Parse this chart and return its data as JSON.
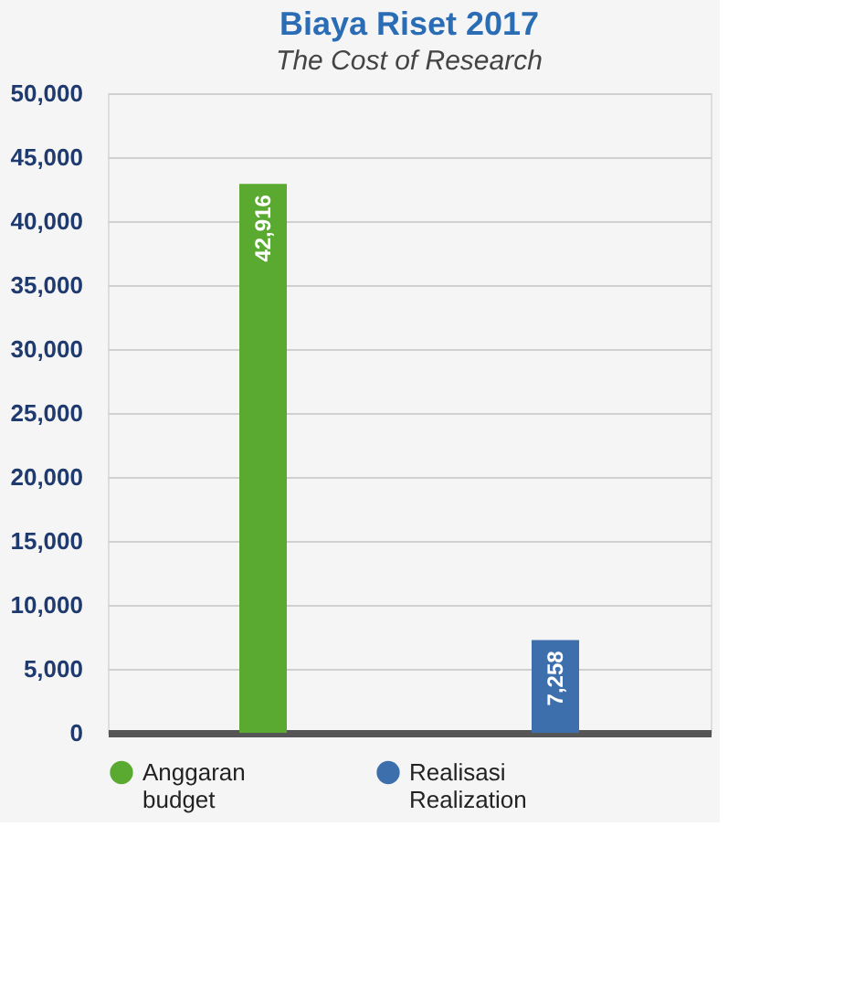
{
  "chart_data": {
    "type": "bar",
    "title": "Biaya Riset 2017",
    "subtitle": "The Cost of Research",
    "categories": [
      null,
      null
    ],
    "series": [
      {
        "name": "Anggaran\nbudget",
        "color": "#5aaa32",
        "values": [
          42916,
          null
        ],
        "value_labels": [
          "42,916",
          null
        ]
      },
      {
        "name": "Realisasi\nRealization",
        "color": "#3d6fad",
        "values": [
          null,
          7258
        ],
        "value_labels": [
          null,
          "7,258"
        ]
      }
    ],
    "ylim": [
      0,
      50000
    ],
    "yticks": [
      0,
      {
        "value": 5000,
        "label": "5,000"
      },
      {
        "value": 10000,
        "label": "10,000"
      },
      {
        "value": 15000,
        "label": "15,000"
      },
      {
        "value": 20000,
        "label": "20,000"
      },
      {
        "value": 25000,
        "label": "25,000"
      },
      {
        "value": 30000,
        "label": "30,000"
      },
      {
        "value": 35000,
        "label": "35,000"
      },
      {
        "value": 40000,
        "label": "40,000"
      },
      {
        "value": 45000,
        "label": "45,000"
      },
      {
        "value": 50000,
        "label": "50,000"
      }
    ],
    "grid": "y",
    "legend": "bottom",
    "tick_labels": "y",
    "data_labels": true
  }
}
